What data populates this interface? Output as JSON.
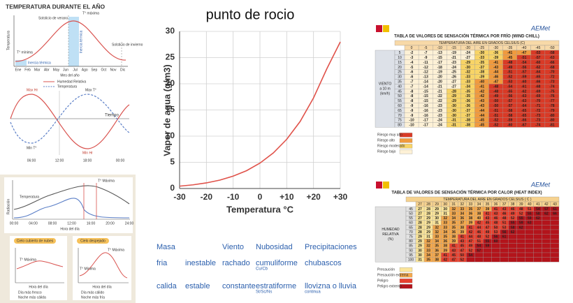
{
  "chart_data": {
    "type": "line",
    "title": "punto de rocio",
    "x_label": "Temperatura °C",
    "y_label": "Vapor de agua (g/m3)",
    "x": [
      -30,
      -25,
      -20,
      -15,
      -10,
      -5,
      0,
      5,
      10,
      15,
      20,
      25,
      30
    ],
    "values": [
      0.45,
      0.7,
      1.07,
      1.6,
      2.36,
      3.4,
      4.85,
      6.8,
      9.4,
      12.8,
      17.3,
      22.9,
      28
    ],
    "color": "#e0524a",
    "xlim": [
      -30,
      30
    ],
    "ylim": [
      0,
      30
    ],
    "xticks": [
      -30,
      -20,
      -10,
      0,
      {
        "value": 10,
        "label": "+10"
      },
      {
        "value": 20,
        "label": "+20"
      },
      {
        "value": 30,
        "label": "+30"
      }
    ],
    "yticks": [
      0,
      5,
      10,
      15,
      20,
      25,
      30
    ],
    "grid": true
  },
  "terms": {
    "header": [
      "Masa",
      "Viento",
      "Nubosidad",
      "Precipitaciones"
    ],
    "rows": [
      {
        "masa": "fria",
        "estabilidad": "inestable",
        "viento": "rachado",
        "nubosidad": "cumuliforme",
        "nubosidad_sub": "Cu/Cb",
        "precipitacion": "chubascos"
      },
      {
        "masa": "calida",
        "estabilidad": "estable",
        "viento": "constante",
        "nubosidad": "estratiforme",
        "nubosidad_sub": "St/Sc/Ns",
        "precipitacion": "llovizna o lluvia",
        "precipitacion_sub": "continua"
      }
    ]
  },
  "year_chart": {
    "title": "TEMPERATURA DURANTE EL AÑO",
    "summer": "Solsticio de verano",
    "max": "T° máxima",
    "min": "T° mínima",
    "inertia": "Inercia térmica",
    "winter": "Solsticio de invierno",
    "y_label": "Temperatura",
    "x_label": "Mes del año",
    "months": [
      "Ene",
      "Feb",
      "Mar",
      "Abr",
      "May",
      "Jun",
      "Jul",
      "Ago",
      "Sep",
      "Oct",
      "Nov",
      "Dic"
    ]
  },
  "humidity_chart": {
    "legend": [
      "Humedad Relativa",
      "Temperatura"
    ],
    "max_hr": "Max Hr",
    "max_t": "Max T°",
    "min_t": "Min T°",
    "min_hr": "Min Hr",
    "x_label": "Tiempo",
    "times": [
      "06:00",
      "12:00",
      "18:00",
      "00:00"
    ]
  },
  "day_chart": {
    "max": "T° Máxima",
    "temp": "Temperatura",
    "radiation": "Radiación",
    "x_label": "Hora del día",
    "times": [
      "00:00",
      "04:00",
      "08:00",
      "12:00",
      "16:00",
      "20:00",
      "24:00"
    ]
  },
  "cloud_boxes": [
    {
      "title": "Cielo cubierto de nubes",
      "max": "T° Máxima",
      "x_label": "Hora del día",
      "legend": [
        "Día más fresco",
        "Noche más cálida"
      ]
    },
    {
      "title": "Cielo despejado",
      "max": "T° Máxima",
      "min": "T° Mínima",
      "x_label": "Hora del día",
      "legend": [
        "Día más cálido",
        "Noche más fría"
      ]
    }
  ],
  "wind_chill": {
    "logo": "AEMet",
    "title": "TABLA DE VALORES DE SENSACIÓN TÉRMICA POR FRÍO (WIND CHILL)",
    "header": "TEMPERATURA DEL AIRE EN GRADOS CELSIUS (C)",
    "row_label": [
      "VIENTO",
      "a 10 m",
      "(km/h)"
    ],
    "temperatures": [
      0,
      -5,
      -10,
      -15,
      -20,
      -25,
      -30,
      -35,
      -40,
      -45,
      -50
    ],
    "speeds": [
      5,
      10,
      15,
      20,
      25,
      30,
      35,
      40,
      45,
      50,
      55,
      60,
      65,
      70,
      75,
      80
    ],
    "rows": [
      [
        -2,
        -7,
        -13,
        -19,
        -24,
        -30,
        -36,
        -41,
        -47,
        -53,
        -58
      ],
      [
        -3,
        -9,
        -15,
        -21,
        -27,
        -33,
        -39,
        -45,
        -51,
        -57,
        -63
      ],
      [
        -4,
        -11,
        -17,
        -23,
        -29,
        -35,
        -41,
        -48,
        -54,
        -60,
        -66
      ],
      [
        -5,
        -12,
        -18,
        -24,
        -30,
        -37,
        -43,
        -49,
        -56,
        -62,
        -68
      ],
      [
        -6,
        -12,
        -19,
        -25,
        -32,
        -38,
        -44,
        -51,
        -57,
        -64,
        -70
      ],
      [
        -6,
        -13,
        -20,
        -26,
        -33,
        -39,
        -46,
        -52,
        -59,
        -65,
        -72
      ],
      [
        -7,
        -14,
        -20,
        -27,
        -33,
        -40,
        -47,
        -53,
        -60,
        -66,
        -73
      ],
      [
        -7,
        -14,
        -21,
        -27,
        -34,
        -41,
        -48,
        -54,
        -61,
        -68,
        -74
      ],
      [
        -8,
        -15,
        -21,
        -28,
        -35,
        -42,
        -48,
        -55,
        -62,
        -69,
        -75
      ],
      [
        -8,
        -15,
        -22,
        -29,
        -35,
        -42,
        -49,
        -56,
        -63,
        -69,
        -76
      ],
      [
        -8,
        -15,
        -22,
        -29,
        -36,
        -43,
        -50,
        -57,
        -63,
        -70,
        -77
      ],
      [
        -9,
        -16,
        -23,
        -30,
        -36,
        -43,
        -50,
        -57,
        -64,
        -71,
        -78
      ],
      [
        -9,
        -16,
        -23,
        -30,
        -37,
        -44,
        -51,
        -58,
        -65,
        -72,
        -79
      ],
      [
        -9,
        -16,
        -23,
        -30,
        -37,
        -44,
        -51,
        -58,
        -65,
        -73,
        -80
      ],
      [
        -10,
        -17,
        -24,
        -31,
        -38,
        -45,
        -52,
        -59,
        -66,
        -73,
        -80
      ],
      [
        -10,
        -17,
        -24,
        -31,
        -38,
        -45,
        -52,
        -60,
        -67,
        -74,
        -81
      ]
    ],
    "levels": [
      {
        "label": "Riesgo bajo",
        "min": -27,
        "color": "#fdf1d6"
      },
      {
        "label": "Riesgo moderado",
        "min": -39,
        "color": "#f8d466"
      },
      {
        "label": "Riesgo alto",
        "min": -47,
        "color": "#f09a3e"
      },
      {
        "label": "Riesgo muy alto",
        "color": "#d93a26"
      }
    ]
  },
  "heat_index": {
    "logo": "AEMet",
    "title": "TABLA DE VALORES DE SENSACIÓN TÉRMICA POR CALOR (HEAT INDEX)",
    "header": "TEMPERATURA DEL AIRE EN GRADOS CELSIUS ( C )",
    "row_label": [
      "HUMEDAD",
      "RELATIVA",
      "(%)"
    ],
    "temperatures": [
      27,
      28,
      29,
      30,
      31,
      32,
      33,
      34,
      35,
      36,
      37,
      38,
      39,
      40,
      41,
      42,
      43
    ],
    "humidities": [
      45,
      50,
      55,
      60,
      65,
      70,
      75,
      80,
      85,
      90,
      95,
      100
    ],
    "rows": [
      [
        27,
        28,
        29,
        30,
        32,
        33,
        35,
        37,
        39,
        41,
        43,
        46,
        48,
        51,
        54,
        57,
        61
      ],
      [
        27,
        28,
        29,
        31,
        33,
        34,
        36,
        38,
        41,
        43,
        46,
        49,
        52,
        55,
        58,
        62,
        66
      ],
      [
        27,
        29,
        30,
        32,
        34,
        36,
        38,
        40,
        43,
        46,
        48,
        52,
        55,
        59,
        62
      ],
      [
        28,
        29,
        31,
        33,
        35,
        37,
        39,
        42,
        45,
        48,
        51,
        55,
        59,
        63
      ],
      [
        28,
        29,
        32,
        33,
        35,
        38,
        41,
        44,
        47,
        50,
        53,
        58,
        62
      ],
      [
        28,
        29,
        32,
        34,
        36,
        39,
        42,
        46,
        49,
        53,
        56,
        62
      ],
      [
        29,
        31,
        33,
        35,
        38,
        41,
        44,
        48,
        52,
        56,
        61
      ],
      [
        29,
        32,
        34,
        36,
        39,
        43,
        47,
        51,
        55,
        60
      ],
      [
        29,
        32,
        35,
        38,
        41,
        45,
        49,
        54,
        59
      ],
      [
        30,
        33,
        36,
        39,
        43,
        47,
        52,
        57
      ],
      [
        30,
        34,
        37,
        41,
        45,
        50,
        54
      ],
      [
        31,
        35,
        38,
        42,
        47,
        52
      ]
    ],
    "levels": [
      {
        "label": "Peligro extremo",
        "min": 54,
        "color": "#b3141b"
      },
      {
        "label": "Peligro",
        "min": 41,
        "color": "#e6412f"
      },
      {
        "label": "Precaución extrema",
        "min": 32,
        "color": "#f4a84c"
      },
      {
        "label": "Precaución",
        "color": "#fbe59a"
      }
    ]
  }
}
